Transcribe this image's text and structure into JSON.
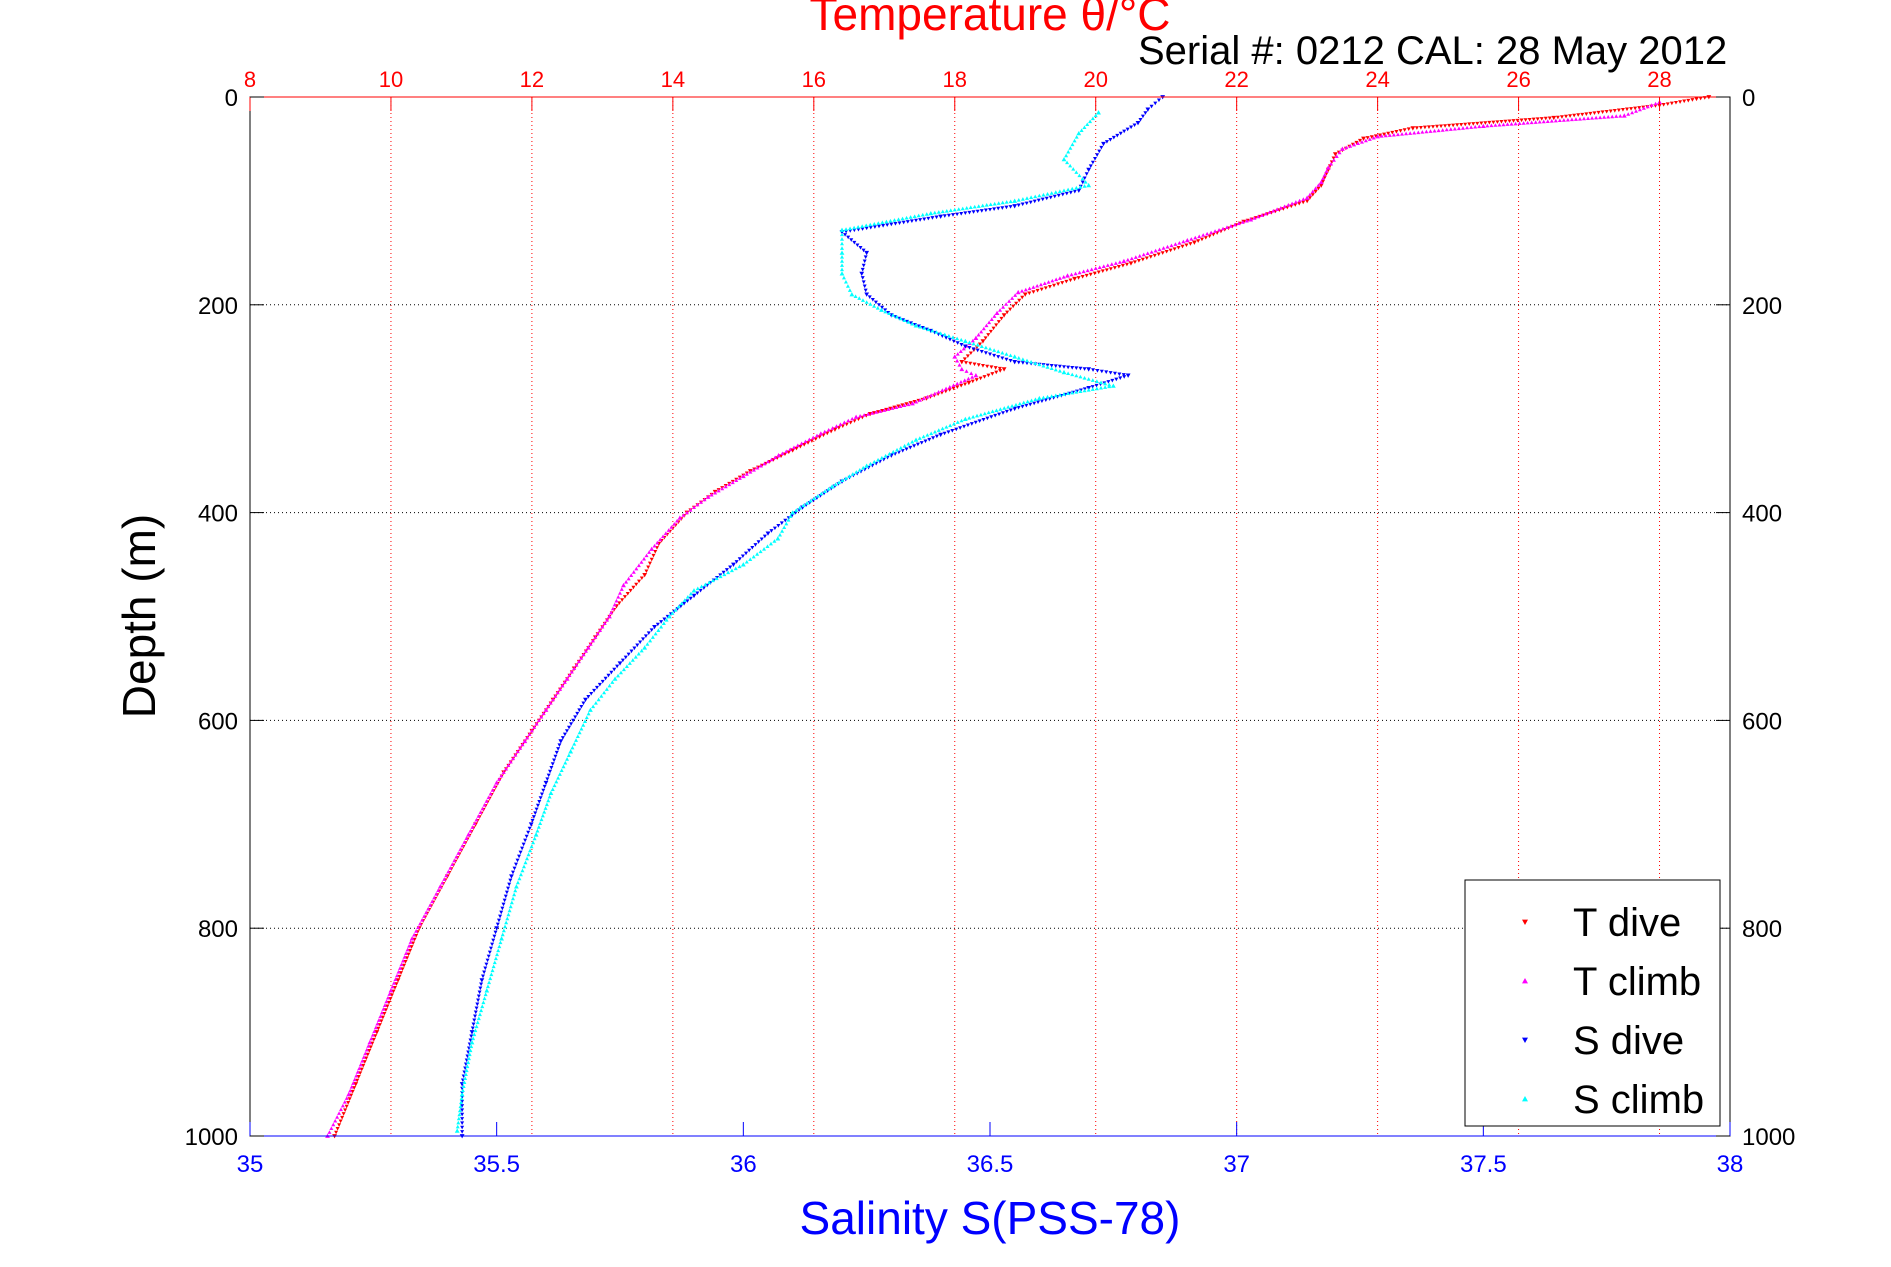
{
  "chart_data": {
    "type": "scatter",
    "title": "Temperature θ/°C",
    "subtitle": "Serial #: 0212  CAL: 28 May 2012",
    "xlabel": "Salinity S(PSS-78)",
    "ylabel": "Depth (m)",
    "top_axis": {
      "label": "Temperature θ/°C",
      "range": [
        8,
        29
      ],
      "ticks": [
        8,
        10,
        12,
        14,
        16,
        18,
        20,
        22,
        24,
        26,
        28
      ],
      "tick_labels": [
        "8",
        "10",
        "12",
        "14",
        "16",
        "18",
        "20",
        "22",
        "24",
        "26",
        "28"
      ]
    },
    "bottom_axis": {
      "label": "Salinity S(PSS-78)",
      "range": [
        35,
        38
      ],
      "ticks": [
        35,
        35.5,
        36,
        36.5,
        37,
        37.5,
        38
      ],
      "tick_labels": [
        "35",
        "35.5",
        "36",
        "36.5",
        "37",
        "37.5",
        "38"
      ]
    },
    "y_axis": {
      "label": "Depth (m)",
      "range": [
        0,
        1000
      ],
      "reversed": true,
      "ticks": [
        0,
        200,
        400,
        600,
        800,
        1000
      ],
      "tick_labels": [
        "0",
        "200",
        "400",
        "600",
        "800",
        "1000"
      ]
    },
    "grid": true,
    "legend_position": "bottom-right",
    "series": [
      {
        "name": "T dive",
        "axis": "temperature",
        "color": "#ff0000",
        "marker": "triangle-down",
        "points": [
          [
            28.7,
            0
          ],
          [
            28.0,
            8
          ],
          [
            26.5,
            20
          ],
          [
            24.5,
            30
          ],
          [
            23.8,
            40
          ],
          [
            23.4,
            55
          ],
          [
            23.3,
            70
          ],
          [
            23.2,
            85
          ],
          [
            23.0,
            100
          ],
          [
            22.1,
            120
          ],
          [
            21.4,
            140
          ],
          [
            20.5,
            160
          ],
          [
            19.7,
            175
          ],
          [
            19.0,
            190
          ],
          [
            18.7,
            210
          ],
          [
            18.4,
            235
          ],
          [
            18.1,
            255
          ],
          [
            18.7,
            262
          ],
          [
            18.2,
            275
          ],
          [
            17.6,
            290
          ],
          [
            16.8,
            305
          ],
          [
            16.3,
            320
          ],
          [
            15.7,
            340
          ],
          [
            15.1,
            360
          ],
          [
            14.6,
            380
          ],
          [
            14.2,
            400
          ],
          [
            13.8,
            430
          ],
          [
            13.6,
            460
          ],
          [
            13.2,
            490
          ],
          [
            12.9,
            520
          ],
          [
            12.6,
            550
          ],
          [
            12.3,
            580
          ],
          [
            12.0,
            610
          ],
          [
            11.6,
            650
          ],
          [
            11.2,
            700
          ],
          [
            10.8,
            750
          ],
          [
            10.4,
            800
          ],
          [
            10.1,
            850
          ],
          [
            9.8,
            900
          ],
          [
            9.5,
            950
          ],
          [
            9.2,
            1000
          ]
        ]
      },
      {
        "name": "T climb",
        "axis": "temperature",
        "color": "#ff00ff",
        "marker": "triangle-up",
        "points": [
          [
            28.0,
            5
          ],
          [
            27.5,
            18
          ],
          [
            25.5,
            28
          ],
          [
            24.0,
            38
          ],
          [
            23.5,
            50
          ],
          [
            23.3,
            68
          ],
          [
            23.2,
            82
          ],
          [
            23.0,
            97
          ],
          [
            22.2,
            118
          ],
          [
            21.3,
            138
          ],
          [
            20.4,
            158
          ],
          [
            19.6,
            172
          ],
          [
            18.9,
            188
          ],
          [
            18.6,
            208
          ],
          [
            18.3,
            232
          ],
          [
            18.0,
            250
          ],
          [
            18.1,
            262
          ],
          [
            18.3,
            268
          ],
          [
            17.4,
            295
          ],
          [
            16.6,
            308
          ],
          [
            16.1,
            324
          ],
          [
            15.5,
            345
          ],
          [
            15.0,
            365
          ],
          [
            14.5,
            385
          ],
          [
            14.1,
            405
          ],
          [
            13.7,
            435
          ],
          [
            13.3,
            470
          ],
          [
            13.1,
            500
          ],
          [
            12.8,
            530
          ],
          [
            12.5,
            560
          ],
          [
            12.2,
            590
          ],
          [
            11.9,
            620
          ],
          [
            11.5,
            660
          ],
          [
            11.1,
            710
          ],
          [
            10.7,
            760
          ],
          [
            10.3,
            810
          ],
          [
            10.0,
            860
          ],
          [
            9.7,
            910
          ],
          [
            9.4,
            960
          ],
          [
            9.1,
            1000
          ]
        ]
      },
      {
        "name": "S dive",
        "axis": "salinity",
        "color": "#0000ff",
        "marker": "triangle-down",
        "points": [
          [
            36.85,
            0
          ],
          [
            36.82,
            12
          ],
          [
            36.8,
            25
          ],
          [
            36.73,
            45
          ],
          [
            36.7,
            70
          ],
          [
            36.68,
            90
          ],
          [
            36.55,
            105
          ],
          [
            36.4,
            115
          ],
          [
            36.2,
            130
          ],
          [
            36.25,
            150
          ],
          [
            36.24,
            170
          ],
          [
            36.25,
            190
          ],
          [
            36.3,
            210
          ],
          [
            36.38,
            225
          ],
          [
            36.45,
            240
          ],
          [
            36.55,
            255
          ],
          [
            36.7,
            262
          ],
          [
            36.78,
            268
          ],
          [
            36.7,
            280
          ],
          [
            36.55,
            300
          ],
          [
            36.4,
            325
          ],
          [
            36.3,
            345
          ],
          [
            36.2,
            370
          ],
          [
            36.12,
            395
          ],
          [
            36.05,
            420
          ],
          [
            35.98,
            450
          ],
          [
            35.9,
            480
          ],
          [
            35.82,
            510
          ],
          [
            35.75,
            545
          ],
          [
            35.68,
            580
          ],
          [
            35.63,
            620
          ],
          [
            35.6,
            660
          ],
          [
            35.57,
            700
          ],
          [
            35.53,
            750
          ],
          [
            35.5,
            800
          ],
          [
            35.47,
            850
          ],
          [
            35.45,
            900
          ],
          [
            35.43,
            950
          ],
          [
            35.43,
            1000
          ]
        ]
      },
      {
        "name": "S climb",
        "axis": "salinity",
        "color": "#00ffff",
        "marker": "triangle-up",
        "points": [
          [
            36.72,
            15
          ],
          [
            36.68,
            35
          ],
          [
            36.65,
            60
          ],
          [
            36.7,
            85
          ],
          [
            36.55,
            100
          ],
          [
            36.38,
            112
          ],
          [
            36.2,
            128
          ],
          [
            36.2,
            150
          ],
          [
            36.2,
            170
          ],
          [
            36.22,
            190
          ],
          [
            36.28,
            205
          ],
          [
            36.35,
            220
          ],
          [
            36.45,
            235
          ],
          [
            36.55,
            250
          ],
          [
            36.65,
            265
          ],
          [
            36.75,
            278
          ],
          [
            36.6,
            290
          ],
          [
            36.45,
            310
          ],
          [
            36.35,
            330
          ],
          [
            36.25,
            355
          ],
          [
            36.18,
            375
          ],
          [
            36.1,
            400
          ],
          [
            36.07,
            425
          ],
          [
            36.0,
            450
          ],
          [
            35.9,
            475
          ],
          [
            35.85,
            500
          ],
          [
            35.8,
            530
          ],
          [
            35.74,
            560
          ],
          [
            35.69,
            590
          ],
          [
            35.65,
            630
          ],
          [
            35.61,
            670
          ],
          [
            35.58,
            710
          ],
          [
            35.54,
            760
          ],
          [
            35.51,
            810
          ],
          [
            35.48,
            860
          ],
          [
            35.45,
            910
          ],
          [
            35.43,
            960
          ],
          [
            35.42,
            995
          ]
        ]
      }
    ]
  }
}
